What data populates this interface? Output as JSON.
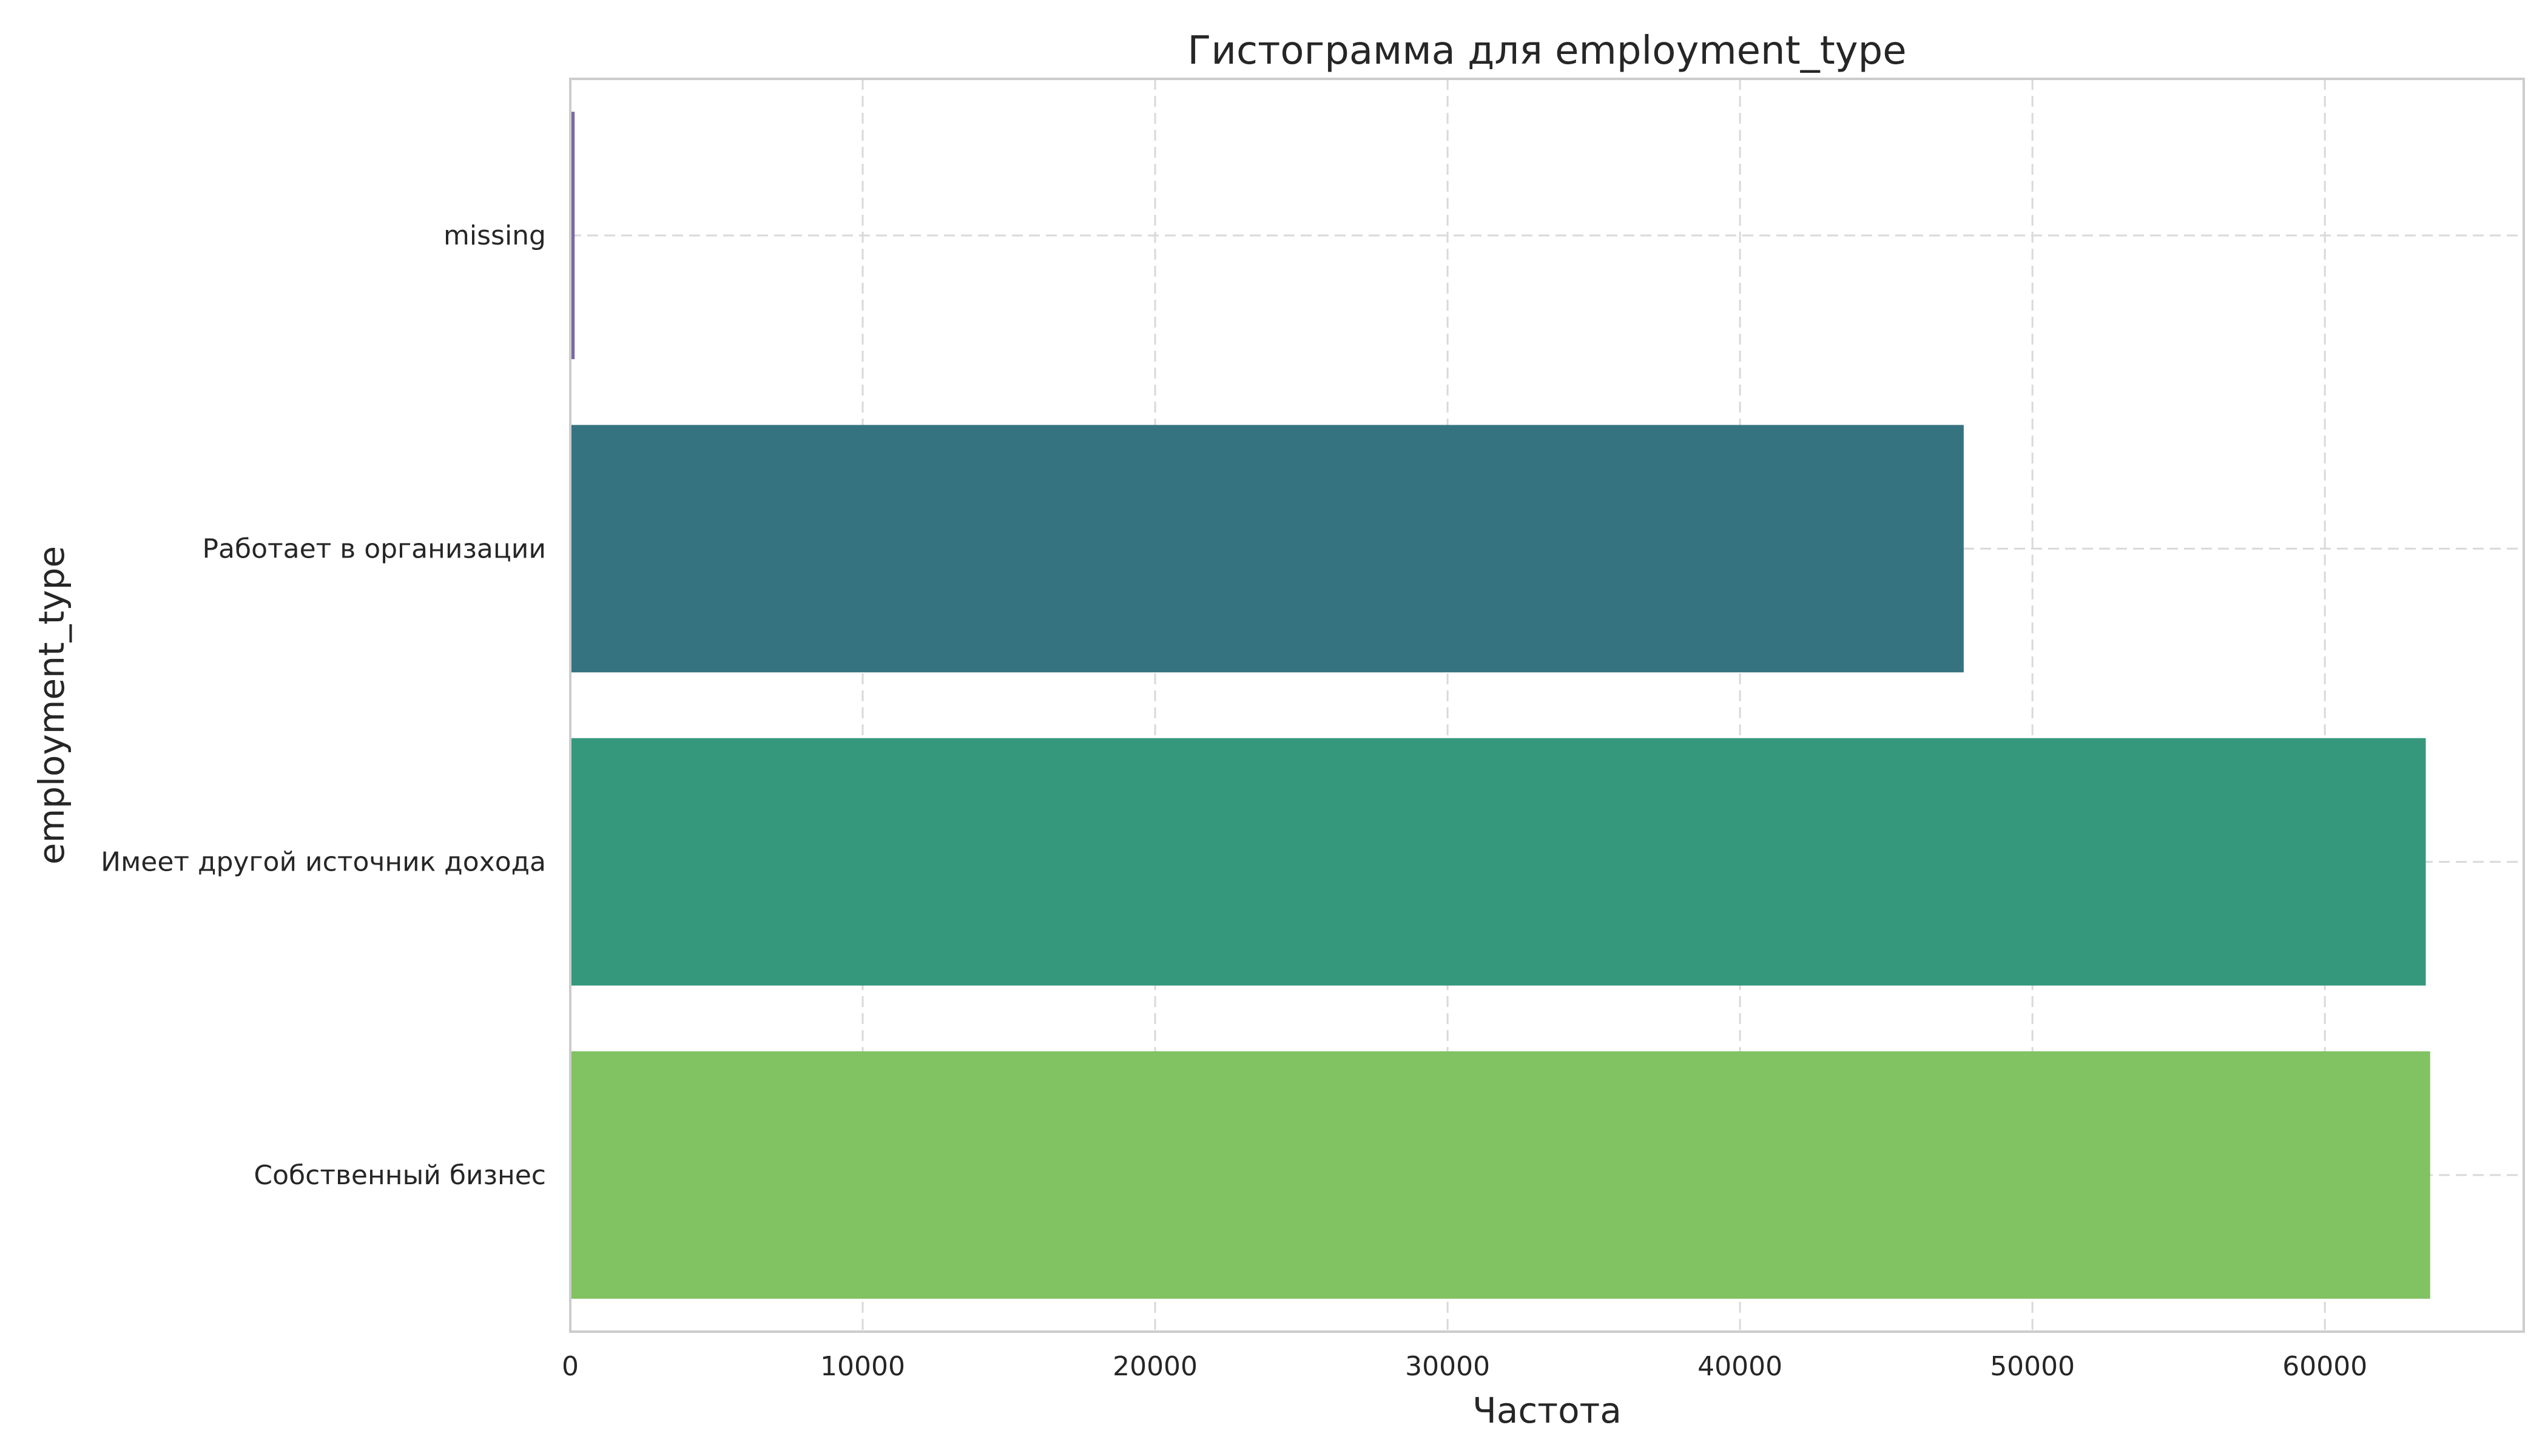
{
  "chart_data": {
    "type": "bar",
    "orientation": "horizontal",
    "title": "Гистограмма для employment_type",
    "xlabel": "Частота",
    "ylabel": "employment_type",
    "categories": [
      "missing",
      "Работает в организации",
      "Имеет другой источник дохода",
      "Собственный бизнес"
    ],
    "values": [
      150,
      47650,
      63450,
      63600
    ],
    "colors": [
      "#7b6aa5",
      "#367381",
      "#35987d",
      "#81c262"
    ],
    "xlim": [
      0,
      66800
    ],
    "xticks": [
      0,
      10000,
      20000,
      30000,
      40000,
      50000,
      60000
    ],
    "xtick_labels": [
      "0",
      "10000",
      "20000",
      "30000",
      "40000",
      "50000",
      "60000"
    ],
    "grid": true
  }
}
